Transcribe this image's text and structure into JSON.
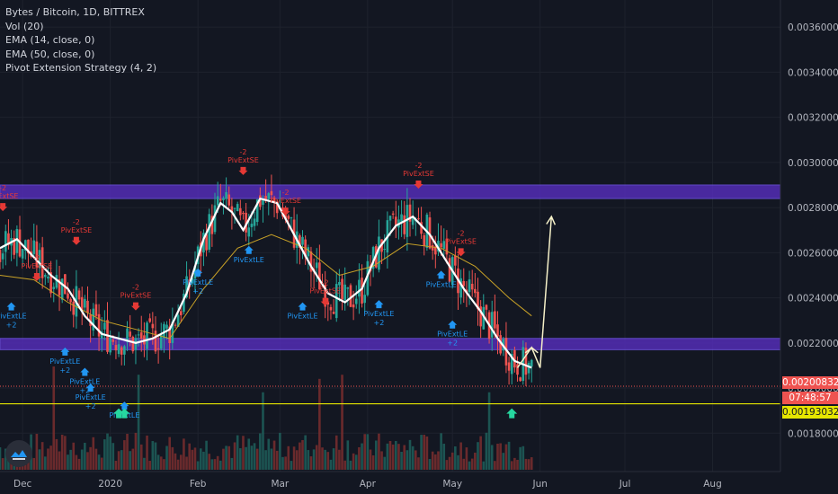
{
  "legend": {
    "symbol": "Bytes / Bitcoin, 1D, BITTREX",
    "vol": "Vol (20)",
    "ema14": "EMA (14, close, 0)",
    "ema50": "EMA (50, close, 0)",
    "strategy": "Pivot Extension Strategy (4, 2)"
  },
  "price_tags": {
    "current": "0.00200832",
    "countdown": "07:48:57",
    "support": "0.00193032"
  },
  "colors": {
    "bg": "#131722",
    "up": "#26a69a",
    "down": "#ef5350",
    "ema14": "#ffffff",
    "ema50": "#c9a227",
    "zone": "#5b2fc9",
    "support_line": "#e6e600",
    "signal_long": "#2196f3",
    "signal_short": "#e53935",
    "arrow": "#f5f0c8"
  },
  "chart_data": {
    "type": "line",
    "y_axis": {
      "ylim": [
        0.00163,
        0.00372
      ],
      "ticks": [
        "0.00360000",
        "0.00340000",
        "0.00320000",
        "0.00300000",
        "0.00280000",
        "0.00260000",
        "0.00240000",
        "0.00220000",
        "0.00200000",
        "0.00180000"
      ],
      "tick_values": [
        0.0036,
        0.0034,
        0.0032,
        0.003,
        0.0028,
        0.0026,
        0.0024,
        0.0022,
        0.002,
        0.0018
      ]
    },
    "x_axis": {
      "labels": [
        "Dec",
        "2020",
        "Feb",
        "Mar",
        "Apr",
        "May",
        "Jun",
        "Jul",
        "Aug"
      ],
      "label_days": [
        0,
        31,
        62,
        91,
        122,
        152,
        183,
        213,
        244
      ],
      "range_days": [
        -8,
        268
      ]
    },
    "zones": [
      {
        "from": 0.00284,
        "to": 0.0029
      },
      {
        "from": 0.00217,
        "to": 0.00222
      }
    ],
    "support_level": 0.00193032,
    "current_price": 0.00200832,
    "ema14": [
      [
        -8,
        0.00262
      ],
      [
        -2,
        0.00266
      ],
      [
        4,
        0.00258
      ],
      [
        10,
        0.0025
      ],
      [
        16,
        0.00244
      ],
      [
        22,
        0.00232
      ],
      [
        28,
        0.00224
      ],
      [
        34,
        0.00222
      ],
      [
        40,
        0.0022
      ],
      [
        46,
        0.00222
      ],
      [
        52,
        0.00226
      ],
      [
        58,
        0.00242
      ],
      [
        64,
        0.00266
      ],
      [
        70,
        0.00282
      ],
      [
        74,
        0.00278
      ],
      [
        78,
        0.0027
      ],
      [
        84,
        0.00284
      ],
      [
        90,
        0.00282
      ],
      [
        96,
        0.00268
      ],
      [
        102,
        0.00254
      ],
      [
        108,
        0.00242
      ],
      [
        114,
        0.00238
      ],
      [
        120,
        0.00244
      ],
      [
        126,
        0.00262
      ],
      [
        132,
        0.00272
      ],
      [
        138,
        0.00276
      ],
      [
        144,
        0.00268
      ],
      [
        150,
        0.00256
      ],
      [
        156,
        0.00244
      ],
      [
        162,
        0.00234
      ],
      [
        168,
        0.00222
      ],
      [
        174,
        0.00212
      ],
      [
        180,
        0.00209
      ]
    ],
    "ema50": [
      [
        -8,
        0.0025
      ],
      [
        4,
        0.00248
      ],
      [
        16,
        0.00238
      ],
      [
        28,
        0.0023
      ],
      [
        40,
        0.00226
      ],
      [
        52,
        0.00222
      ],
      [
        64,
        0.00244
      ],
      [
        76,
        0.00262
      ],
      [
        88,
        0.00268
      ],
      [
        100,
        0.00262
      ],
      [
        112,
        0.0025
      ],
      [
        124,
        0.00254
      ],
      [
        136,
        0.00264
      ],
      [
        148,
        0.00262
      ],
      [
        160,
        0.00254
      ],
      [
        172,
        0.0024
      ],
      [
        180,
        0.00232
      ]
    ],
    "volume_peaks": [
      {
        "day": 11,
        "rel": 1.0
      },
      {
        "day": 41,
        "rel": 0.92
      },
      {
        "day": 85,
        "rel": 0.75
      },
      {
        "day": 105,
        "rel": 0.88
      },
      {
        "day": 113,
        "rel": 0.92
      },
      {
        "day": 165,
        "rel": 0.75
      }
    ],
    "signals": [
      {
        "kind": "short",
        "day": -7,
        "price": 0.00282,
        "label": "PivExtSE",
        "sub": "-2"
      },
      {
        "kind": "short",
        "day": 19,
        "price": 0.00267,
        "label": "PivExtSE",
        "sub": "-2"
      },
      {
        "kind": "short",
        "day": 5,
        "price": 0.00251,
        "label": "PivExtSE",
        "sub": "-2"
      },
      {
        "kind": "short",
        "day": 40,
        "price": 0.00238,
        "label": "PivExtSE",
        "sub": "-2"
      },
      {
        "kind": "short",
        "day": 78,
        "price": 0.00298,
        "label": "PivExtSE",
        "sub": "-2"
      },
      {
        "kind": "short",
        "day": 93,
        "price": 0.0028,
        "label": "PivExtSE",
        "sub": "-2"
      },
      {
        "kind": "short",
        "day": 107,
        "price": 0.0024,
        "label": "PivExtSE",
        "sub": "-2"
      },
      {
        "kind": "short",
        "day": 140,
        "price": 0.00292,
        "label": "PivExtSE",
        "sub": "-2"
      },
      {
        "kind": "short",
        "day": 155,
        "price": 0.00262,
        "label": "PivExtSE",
        "sub": "-2"
      },
      {
        "kind": "long",
        "day": -4,
        "price": 0.00238,
        "label": "PivExtLE",
        "sub": "+2"
      },
      {
        "kind": "long",
        "day": 15,
        "price": 0.00218,
        "label": "PivExtLE",
        "sub": "+2"
      },
      {
        "kind": "long",
        "day": 22,
        "price": 0.00209,
        "label": "PivExtLE",
        "sub": "+2"
      },
      {
        "kind": "long",
        "day": 24,
        "price": 0.00202,
        "label": "PivExtLE",
        "sub": "+2"
      },
      {
        "kind": "long",
        "day": 36,
        "price": 0.00194,
        "label": "PivExtLE",
        "sub": ""
      },
      {
        "kind": "long",
        "day": 62,
        "price": 0.00253,
        "label": "PivExtLE",
        "sub": "+2"
      },
      {
        "kind": "long",
        "day": 80,
        "price": 0.00263,
        "label": "PivExtLE",
        "sub": ""
      },
      {
        "kind": "long",
        "day": 99,
        "price": 0.00238,
        "label": "PivExtLE",
        "sub": ""
      },
      {
        "kind": "long",
        "day": 126,
        "price": 0.00239,
        "label": "PivExtLE",
        "sub": "+2"
      },
      {
        "kind": "long",
        "day": 148,
        "price": 0.00252,
        "label": "PivExtLE",
        "sub": ""
      },
      {
        "kind": "long",
        "day": 152,
        "price": 0.0023,
        "label": "PivExtLE",
        "sub": "+2"
      }
    ],
    "green_arrows": [
      {
        "day": 34,
        "price": 0.00191
      },
      {
        "day": 36,
        "price": 0.00191
      },
      {
        "day": 173,
        "price": 0.00191
      }
    ],
    "projection": [
      [
        175,
        0.00209
      ],
      [
        180,
        0.00218
      ],
      [
        183,
        0.00209
      ],
      [
        187,
        0.00276
      ]
    ]
  }
}
